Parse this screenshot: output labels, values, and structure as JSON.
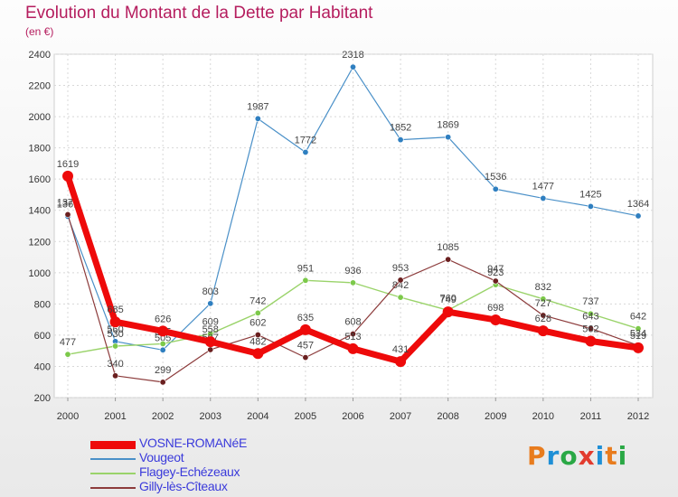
{
  "header": {
    "title": "Evolution du Montant de la Dette par Habitant",
    "subtitle": "(en €)"
  },
  "logo": {
    "letters": [
      "P",
      "r",
      "o",
      "x",
      "i",
      "t",
      "i"
    ]
  },
  "chart_data": {
    "type": "line",
    "title": "Evolution du Montant de la Dette par Habitant",
    "subtitle": "(en €)",
    "xlabel": "",
    "ylabel": "",
    "x": [
      "2000",
      "2001",
      "2002",
      "2003",
      "2004",
      "2005",
      "2006",
      "2007",
      "2008",
      "2009",
      "2010",
      "2011",
      "2012"
    ],
    "ylim": [
      200,
      2400
    ],
    "yticks": [
      200,
      400,
      600,
      800,
      1000,
      1200,
      1400,
      1600,
      1800,
      2000,
      2200,
      2400
    ],
    "grid": true,
    "legend": "bottom-left",
    "series": [
      {
        "name": "Vougeot",
        "color": "#4a90c8",
        "marker": "#2f7fc0",
        "width": 1.2,
        "r": 3.2,
        "values": [
          1361,
          560,
          505,
          803,
          1987,
          1772,
          2318,
          1852,
          1869,
          1536,
          1477,
          1425,
          1364
        ]
      },
      {
        "name": "Flagey-Echézeaux",
        "color": "#9ad36a",
        "marker": "#7cc94a",
        "width": 1.4,
        "r": 3.2,
        "values": [
          477,
          530,
          545,
          609,
          742,
          951,
          936,
          842,
          760,
          923,
          832,
          737,
          642
        ]
      },
      {
        "name": "Gilly-lès-Cîteaux",
        "color": "#8c3b3b",
        "marker": "#6a1f1f",
        "width": 1.2,
        "r": 3.2,
        "values": [
          1373,
          340,
          299,
          507,
          602,
          457,
          608,
          953,
          1085,
          947,
          727,
          643,
          534
        ]
      },
      {
        "name": "VOSNE-ROMANéE",
        "color": "#ee0a0a",
        "marker": "#ee0a0a",
        "width": 7,
        "r": 6,
        "values": [
          1619,
          685,
          626,
          558,
          482,
          635,
          513,
          431,
          749,
          698,
          628,
          562,
          519
        ]
      }
    ]
  },
  "legend_items": [
    {
      "label": "VOSNE-ROMANéE",
      "color": "#ee0a0a",
      "thick": 9
    },
    {
      "label": "Vougeot",
      "color": "#4a90c8",
      "thick": 2
    },
    {
      "label": "Flagey-Echézeaux",
      "color": "#9ad36a",
      "thick": 2
    },
    {
      "label": "Gilly-lès-Cîteaux",
      "color": "#8c3b3b",
      "thick": 2
    }
  ]
}
